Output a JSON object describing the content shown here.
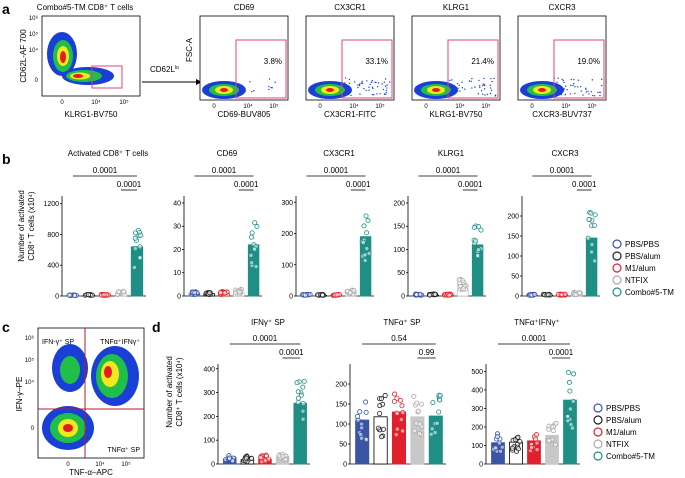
{
  "panel_letters": [
    "a",
    "b",
    "c",
    "d"
  ],
  "colors": {
    "PBS/PBS": "#3a55a4",
    "PBS/alum": "#222222",
    "M1/alum": "#e0202a",
    "NTFIX": "#c8c8c8",
    "Combo#5-TM": "#1f8f86",
    "gate": "#e0457b"
  },
  "panel_a": {
    "gate_plot": {
      "title": "Combo#5-TM CD8⁺ T cells",
      "xlabel": "KLRG1-BV750",
      "ylabel": "CD62L-AF 700",
      "gate_label": "CD62L",
      "gate_sup": "lo",
      "y_ticks": [
        "10⁶",
        "10⁵",
        "10⁴",
        "0"
      ],
      "x_ticks": [
        "0",
        "10⁴",
        "10⁵"
      ]
    },
    "marker_plots": [
      {
        "title": "CD69",
        "xlabel": "CD69-BUV805",
        "pct": "3.8%"
      },
      {
        "title": "CX3CR1",
        "xlabel": "CX3CR1-FITC",
        "pct": "33.1%"
      },
      {
        "title": "KLRG1",
        "xlabel": "KLRG1-BV750",
        "pct": "21.4%"
      },
      {
        "title": "CXCR3",
        "xlabel": "CXCR3-BUV737",
        "pct": "19.0%"
      }
    ],
    "shared_ylabel": "FSC-A",
    "x_ticks": [
      "0",
      "10⁴",
      "10⁵"
    ]
  },
  "panel_b": {
    "ylabel_line1": "Number of activated",
    "ylabel_line2": "CD8⁺ T cells (x10⁴)"
  },
  "panel_c": {
    "ylabel": "IFN-γ–PE",
    "xlabel": "TNF-α–APC",
    "y_ticks": [
      "10⁶",
      "10⁵",
      "10⁴",
      "0"
    ],
    "x_ticks": [
      "0",
      "10⁴",
      "10⁵"
    ],
    "q_ul": "IFN-γ⁺ SP",
    "q_ur": "TNFα⁺IFNγ⁺",
    "q_lr": "TNFα⁺ SP"
  },
  "panel_d": {
    "ylabel_line1": "Number of activated",
    "ylabel_line2": "CD8⁺ T cells (x10⁴)"
  },
  "legend_b": [
    "PBS/PBS",
    "PBS/alum",
    "M1/alum",
    "NTFIX",
    "Combo#5-TM"
  ],
  "legend_d": [
    "PBS/PBS",
    "PBS/alum",
    "M1/alum",
    "NTFIX",
    "Combo#5-TM"
  ],
  "chart_data": [
    {
      "type": "bar",
      "panel": "b",
      "title": "Activated CD8⁺ T cells",
      "categories": [
        "PBS/PBS",
        "PBS/alum",
        "M1/alum",
        "NTFIX",
        "Combo#5-TM"
      ],
      "values": [
        5,
        8,
        8,
        30,
        640
      ],
      "ylim": [
        0,
        1300
      ],
      "yticks": [
        0,
        400,
        800,
        1200
      ],
      "ylabel": "Number of activated CD8⁺ T cells (x10⁴)",
      "annotations": [
        "0.0001",
        "0.0001"
      ]
    },
    {
      "type": "bar",
      "panel": "b",
      "title": "CD69",
      "categories": [
        "PBS/PBS",
        "PBS/alum",
        "M1/alum",
        "NTFIX",
        "Combo#5-TM"
      ],
      "values": [
        1,
        1,
        1,
        1.5,
        22
      ],
      "ylim": [
        0,
        43
      ],
      "yticks": [
        0,
        10,
        20,
        30,
        40
      ],
      "annotations": [
        "0.0001",
        "0.0001"
      ]
    },
    {
      "type": "bar",
      "panel": "b",
      "title": "CX3CR1",
      "categories": [
        "PBS/PBS",
        "PBS/alum",
        "M1/alum",
        "NTFIX",
        "Combo#5-TM"
      ],
      "values": [
        2,
        2,
        2,
        10,
        190
      ],
      "ylim": [
        0,
        320
      ],
      "yticks": [
        0,
        100,
        200,
        300
      ],
      "annotations": [
        "0.0001",
        "0.0001"
      ]
    },
    {
      "type": "bar",
      "panel": "b",
      "title": "KLRG1",
      "categories": [
        "PBS/PBS",
        "PBS/alum",
        "M1/alum",
        "NTFIX",
        "Combo#5-TM"
      ],
      "values": [
        2,
        2,
        2,
        25,
        110
      ],
      "ylim": [
        0,
        215
      ],
      "yticks": [
        0,
        50,
        100,
        150,
        200
      ],
      "annotations": [
        "0.0001",
        "0.0001"
      ]
    },
    {
      "type": "bar",
      "panel": "b",
      "title": "CXCR3",
      "categories": [
        "PBS/PBS",
        "PBS/alum",
        "M1/alum",
        "NTFIX",
        "Combo#5-TM"
      ],
      "values": [
        2,
        2,
        2,
        5,
        145
      ],
      "ylim": [
        0,
        250
      ],
      "yticks": [
        0,
        50,
        100,
        150,
        200
      ],
      "annotations": [
        "0.0001",
        "0.0001"
      ]
    },
    {
      "type": "bar",
      "panel": "d",
      "title": "IFNγ⁺ SP",
      "categories": [
        "PBS/PBS",
        "PBS/alum",
        "M1/alum",
        "NTFIX",
        "Combo#5-TM"
      ],
      "values": [
        20,
        18,
        20,
        30,
        255
      ],
      "ylim": [
        0,
        420
      ],
      "yticks": [
        0,
        100,
        200,
        300,
        400
      ],
      "ylabel": "Number of activated CD8⁺ T cells (x10⁴)",
      "annotations": [
        "0.0001",
        "0.0001"
      ]
    },
    {
      "type": "bar",
      "panel": "d",
      "title": "TNFα⁺ SP",
      "categories": [
        "PBS/PBS",
        "PBS/alum",
        "M1/alum",
        "NTFIX",
        "Combo#5-TM"
      ],
      "values": [
        110,
        118,
        130,
        118,
        120
      ],
      "ylim": [
        0,
        250
      ],
      "yticks": [
        0,
        50,
        100,
        150,
        200
      ],
      "annotations": [
        "0.54",
        "0.99"
      ]
    },
    {
      "type": "bar",
      "panel": "d",
      "title": "TNFα⁺IFNγ⁺",
      "categories": [
        "PBS/PBS",
        "PBS/alum",
        "M1/alum",
        "NTFIX",
        "Combo#5-TM"
      ],
      "values": [
        115,
        118,
        125,
        155,
        345
      ],
      "ylim": [
        0,
        540
      ],
      "yticks": [
        0,
        100,
        200,
        300,
        400,
        500
      ],
      "annotations": [
        "0.0001",
        "0.0001"
      ]
    }
  ]
}
